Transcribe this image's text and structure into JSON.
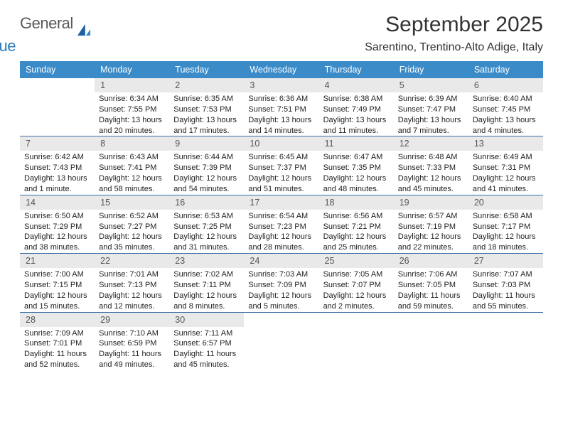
{
  "logo": {
    "text1": "General",
    "text2": "Blue"
  },
  "title": "September 2025",
  "location": "Sarentino, Trentino-Alto Adige, Italy",
  "colors": {
    "header_bg": "#3b8bc9",
    "header_text": "#ffffff",
    "week_border": "#3b6fa0",
    "daynum_bg": "#e9e9e9",
    "daynum_text": "#555555",
    "body_text": "#222222",
    "logo_gray": "#5a5a5a",
    "logo_blue": "#2b7bbd",
    "page_bg": "#ffffff"
  },
  "typography": {
    "title_fontsize": 30,
    "location_fontsize": 16,
    "dayhead_fontsize": 12.5,
    "daynum_fontsize": 12.5,
    "detail_fontsize": 11,
    "font_family": "Arial"
  },
  "layout": {
    "cols": 7,
    "col_labels": [
      "Sunday",
      "Monday",
      "Tuesday",
      "Wednesday",
      "Thursday",
      "Friday",
      "Saturday"
    ]
  },
  "weeks": [
    [
      {
        "empty": true
      },
      {
        "day": "1",
        "sunrise": "Sunrise: 6:34 AM",
        "sunset": "Sunset: 7:55 PM",
        "daylight": "Daylight: 13 hours and 20 minutes."
      },
      {
        "day": "2",
        "sunrise": "Sunrise: 6:35 AM",
        "sunset": "Sunset: 7:53 PM",
        "daylight": "Daylight: 13 hours and 17 minutes."
      },
      {
        "day": "3",
        "sunrise": "Sunrise: 6:36 AM",
        "sunset": "Sunset: 7:51 PM",
        "daylight": "Daylight: 13 hours and 14 minutes."
      },
      {
        "day": "4",
        "sunrise": "Sunrise: 6:38 AM",
        "sunset": "Sunset: 7:49 PM",
        "daylight": "Daylight: 13 hours and 11 minutes."
      },
      {
        "day": "5",
        "sunrise": "Sunrise: 6:39 AM",
        "sunset": "Sunset: 7:47 PM",
        "daylight": "Daylight: 13 hours and 7 minutes."
      },
      {
        "day": "6",
        "sunrise": "Sunrise: 6:40 AM",
        "sunset": "Sunset: 7:45 PM",
        "daylight": "Daylight: 13 hours and 4 minutes."
      }
    ],
    [
      {
        "day": "7",
        "sunrise": "Sunrise: 6:42 AM",
        "sunset": "Sunset: 7:43 PM",
        "daylight": "Daylight: 13 hours and 1 minute."
      },
      {
        "day": "8",
        "sunrise": "Sunrise: 6:43 AM",
        "sunset": "Sunset: 7:41 PM",
        "daylight": "Daylight: 12 hours and 58 minutes."
      },
      {
        "day": "9",
        "sunrise": "Sunrise: 6:44 AM",
        "sunset": "Sunset: 7:39 PM",
        "daylight": "Daylight: 12 hours and 54 minutes."
      },
      {
        "day": "10",
        "sunrise": "Sunrise: 6:45 AM",
        "sunset": "Sunset: 7:37 PM",
        "daylight": "Daylight: 12 hours and 51 minutes."
      },
      {
        "day": "11",
        "sunrise": "Sunrise: 6:47 AM",
        "sunset": "Sunset: 7:35 PM",
        "daylight": "Daylight: 12 hours and 48 minutes."
      },
      {
        "day": "12",
        "sunrise": "Sunrise: 6:48 AM",
        "sunset": "Sunset: 7:33 PM",
        "daylight": "Daylight: 12 hours and 45 minutes."
      },
      {
        "day": "13",
        "sunrise": "Sunrise: 6:49 AM",
        "sunset": "Sunset: 7:31 PM",
        "daylight": "Daylight: 12 hours and 41 minutes."
      }
    ],
    [
      {
        "day": "14",
        "sunrise": "Sunrise: 6:50 AM",
        "sunset": "Sunset: 7:29 PM",
        "daylight": "Daylight: 12 hours and 38 minutes."
      },
      {
        "day": "15",
        "sunrise": "Sunrise: 6:52 AM",
        "sunset": "Sunset: 7:27 PM",
        "daylight": "Daylight: 12 hours and 35 minutes."
      },
      {
        "day": "16",
        "sunrise": "Sunrise: 6:53 AM",
        "sunset": "Sunset: 7:25 PM",
        "daylight": "Daylight: 12 hours and 31 minutes."
      },
      {
        "day": "17",
        "sunrise": "Sunrise: 6:54 AM",
        "sunset": "Sunset: 7:23 PM",
        "daylight": "Daylight: 12 hours and 28 minutes."
      },
      {
        "day": "18",
        "sunrise": "Sunrise: 6:56 AM",
        "sunset": "Sunset: 7:21 PM",
        "daylight": "Daylight: 12 hours and 25 minutes."
      },
      {
        "day": "19",
        "sunrise": "Sunrise: 6:57 AM",
        "sunset": "Sunset: 7:19 PM",
        "daylight": "Daylight: 12 hours and 22 minutes."
      },
      {
        "day": "20",
        "sunrise": "Sunrise: 6:58 AM",
        "sunset": "Sunset: 7:17 PM",
        "daylight": "Daylight: 12 hours and 18 minutes."
      }
    ],
    [
      {
        "day": "21",
        "sunrise": "Sunrise: 7:00 AM",
        "sunset": "Sunset: 7:15 PM",
        "daylight": "Daylight: 12 hours and 15 minutes."
      },
      {
        "day": "22",
        "sunrise": "Sunrise: 7:01 AM",
        "sunset": "Sunset: 7:13 PM",
        "daylight": "Daylight: 12 hours and 12 minutes."
      },
      {
        "day": "23",
        "sunrise": "Sunrise: 7:02 AM",
        "sunset": "Sunset: 7:11 PM",
        "daylight": "Daylight: 12 hours and 8 minutes."
      },
      {
        "day": "24",
        "sunrise": "Sunrise: 7:03 AM",
        "sunset": "Sunset: 7:09 PM",
        "daylight": "Daylight: 12 hours and 5 minutes."
      },
      {
        "day": "25",
        "sunrise": "Sunrise: 7:05 AM",
        "sunset": "Sunset: 7:07 PM",
        "daylight": "Daylight: 12 hours and 2 minutes."
      },
      {
        "day": "26",
        "sunrise": "Sunrise: 7:06 AM",
        "sunset": "Sunset: 7:05 PM",
        "daylight": "Daylight: 11 hours and 59 minutes."
      },
      {
        "day": "27",
        "sunrise": "Sunrise: 7:07 AM",
        "sunset": "Sunset: 7:03 PM",
        "daylight": "Daylight: 11 hours and 55 minutes."
      }
    ],
    [
      {
        "day": "28",
        "sunrise": "Sunrise: 7:09 AM",
        "sunset": "Sunset: 7:01 PM",
        "daylight": "Daylight: 11 hours and 52 minutes."
      },
      {
        "day": "29",
        "sunrise": "Sunrise: 7:10 AM",
        "sunset": "Sunset: 6:59 PM",
        "daylight": "Daylight: 11 hours and 49 minutes."
      },
      {
        "day": "30",
        "sunrise": "Sunrise: 7:11 AM",
        "sunset": "Sunset: 6:57 PM",
        "daylight": "Daylight: 11 hours and 45 minutes."
      },
      {
        "empty": true
      },
      {
        "empty": true
      },
      {
        "empty": true
      },
      {
        "empty": true
      }
    ]
  ]
}
